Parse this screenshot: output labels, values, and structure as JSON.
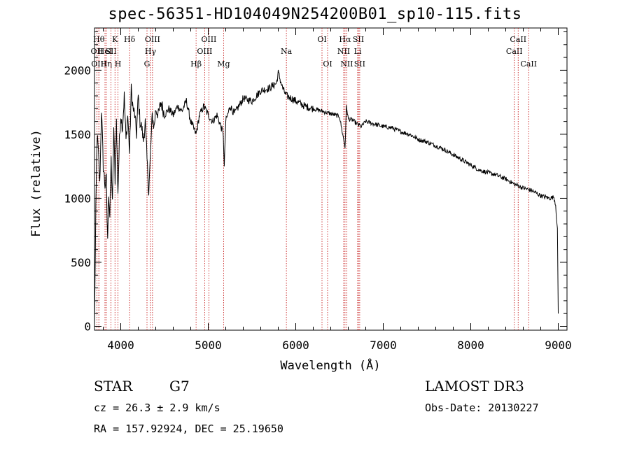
{
  "chart_data": {
    "type": "line",
    "title": "spec-56351-HD104049N254200B01_sp10-115.fits",
    "xlabel": "Wavelength (Å)",
    "ylabel": "Flux (relative)",
    "xlim": [
      3700,
      9100
    ],
    "ylim": [
      -30,
      2330
    ],
    "xticks": [
      4000,
      5000,
      6000,
      7000,
      8000,
      9000
    ],
    "yticks": [
      0,
      500,
      1000,
      1500,
      2000
    ],
    "grid": false,
    "series": [
      {
        "name": "flux",
        "x": [
          3700,
          3715,
          3730,
          3745,
          3760,
          3780,
          3800,
          3820,
          3835,
          3850,
          3860,
          3875,
          3890,
          3905,
          3920,
          3935,
          3950,
          3968,
          3985,
          4000,
          4020,
          4040,
          4060,
          4080,
          4101,
          4120,
          4140,
          4160,
          4180,
          4200,
          4220,
          4240,
          4260,
          4280,
          4300,
          4320,
          4340,
          4360,
          4380,
          4400,
          4430,
          4460,
          4500,
          4550,
          4600,
          4650,
          4700,
          4750,
          4800,
          4861,
          4900,
          4950,
          5000,
          5050,
          5100,
          5150,
          5172,
          5183,
          5200,
          5250,
          5300,
          5350,
          5400,
          5500,
          5600,
          5700,
          5780,
          5800,
          5850,
          5893,
          5950,
          6000,
          6100,
          6200,
          6300,
          6400,
          6500,
          6563,
          6580,
          6600,
          6650,
          6700,
          6750,
          6800,
          6900,
          7000,
          7100,
          7200,
          7300,
          7400,
          7500,
          7600,
          7700,
          7800,
          7900,
          8000,
          8100,
          8200,
          8300,
          8400,
          8500,
          8600,
          8700,
          8800,
          8900,
          8950,
          8970,
          8990,
          9000
        ],
        "y": [
          10,
          900,
          1500,
          1350,
          1100,
          1700,
          1250,
          1100,
          1150,
          650,
          1050,
          850,
          1300,
          950,
          1550,
          1150,
          1600,
          1050,
          1450,
          1650,
          1550,
          1800,
          1450,
          1650,
          1350,
          1850,
          1700,
          1650,
          1500,
          1800,
          1600,
          1550,
          1450,
          1600,
          1300,
          1050,
          1350,
          1650,
          1550,
          1700,
          1650,
          1750,
          1650,
          1700,
          1650,
          1720,
          1680,
          1760,
          1600,
          1500,
          1650,
          1720,
          1650,
          1600,
          1650,
          1550,
          1500,
          1240,
          1600,
          1720,
          1660,
          1720,
          1780,
          1760,
          1840,
          1860,
          1900,
          1980,
          1860,
          1800,
          1780,
          1760,
          1720,
          1700,
          1680,
          1660,
          1640,
          1400,
          1720,
          1620,
          1610,
          1580,
          1560,
          1600,
          1580,
          1560,
          1550,
          1520,
          1500,
          1460,
          1440,
          1410,
          1380,
          1340,
          1300,
          1260,
          1220,
          1200,
          1180,
          1150,
          1110,
          1080,
          1060,
          1020,
          1000,
          1010,
          950,
          750,
          100
        ]
      }
    ],
    "lines": [
      {
        "wave": 3727,
        "label": "OII",
        "row": 1
      },
      {
        "wave": 3750,
        "label": "Hθ",
        "row": 0
      },
      {
        "wave": 3750,
        "label": "OIII",
        "row": 2
      },
      {
        "wave": 3820,
        "label": "HeI",
        "row": 1
      },
      {
        "wave": 3835,
        "label": "Hη",
        "row": 2
      },
      {
        "wave": 3889,
        "label": "SII",
        "row": 1
      },
      {
        "wave": 3934,
        "label": "K",
        "row": 0
      },
      {
        "wave": 3968,
        "label": "H",
        "row": 2
      },
      {
        "wave": 4101,
        "label": "Hδ",
        "row": 0
      },
      {
        "wave": 4300,
        "label": "G",
        "row": 2
      },
      {
        "wave": 4340,
        "label": "Hγ",
        "row": 1
      },
      {
        "wave": 4363,
        "label": "OIII",
        "row": 0
      },
      {
        "wave": 4861,
        "label": "Hβ",
        "row": 2
      },
      {
        "wave": 4959,
        "label": "OIII",
        "row": 1
      },
      {
        "wave": 5007,
        "label": "OIII",
        "row": 0
      },
      {
        "wave": 5175,
        "label": "Mg",
        "row": 2
      },
      {
        "wave": 5893,
        "label": "Na",
        "row": 1
      },
      {
        "wave": 6300,
        "label": "OI",
        "row": 0
      },
      {
        "wave": 6364,
        "label": "OI",
        "row": 2
      },
      {
        "wave": 6548,
        "label": "NII",
        "row": 1
      },
      {
        "wave": 6563,
        "label": "Hα",
        "row": 0
      },
      {
        "wave": 6583,
        "label": "NII",
        "row": 2
      },
      {
        "wave": 6708,
        "label": "Li",
        "row": 1
      },
      {
        "wave": 6716,
        "label": "SII",
        "row": 0
      },
      {
        "wave": 6731,
        "label": "SII",
        "row": 2
      },
      {
        "wave": 8498,
        "label": "CaII",
        "row": 1
      },
      {
        "wave": 8542,
        "label": "CaII",
        "row": 0
      },
      {
        "wave": 8662,
        "label": "CaII",
        "row": 2
      }
    ],
    "line_color": "#c00000"
  },
  "info": {
    "object_class": "STAR",
    "subclass": "G7",
    "survey": "LAMOST DR3",
    "redshift": "cz = 26.3 ± 2.9 km/s",
    "obs_date": "Obs-Date: 20130227",
    "coords": "RA = 157.92924, DEC =  25.19650"
  }
}
